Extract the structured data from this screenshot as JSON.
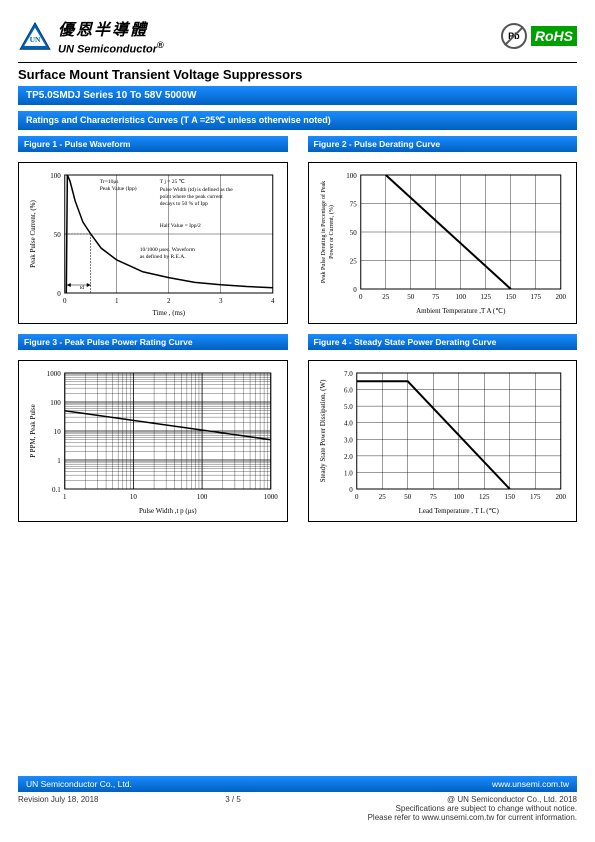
{
  "header": {
    "logo_cn": "優恩半導體",
    "logo_en": "UN Semiconductor",
    "rohs": "RoHS",
    "pb": "Pb"
  },
  "main_title": "Surface Mount Transient Voltage Suppressors",
  "series_bar": "TP5.0SMDJ Series 10 To 58V 5000W",
  "ratings_bar": "Ratings and Characteristics Curves (T A =25℃  unless otherwise noted)",
  "figures": {
    "fig1": {
      "title": "Figure 1 - Pulse Waveform",
      "ylabel": "Peak Pulse Current, (%)",
      "xlabel": "Time , (ms)",
      "xticks": [
        "0",
        "1",
        "2",
        "3",
        "4"
      ],
      "yticks": [
        "0",
        "50",
        "100"
      ],
      "note1": "Tr=10μs",
      "note2": "Peak Value (Ipp)",
      "note3": "T j = 25 ℃",
      "note4": "Pulse Width (td) is defined as the point where the peak current decays to 50 % of Ipp",
      "note5": "Half Value = Ipp/2",
      "note6": "10/1000 μsec. Waveform as defined by R.E.A.",
      "note7": "td",
      "curve": [
        [
          0.05,
          1.0
        ],
        [
          0.1,
          0.95
        ],
        [
          0.2,
          0.78
        ],
        [
          0.35,
          0.6
        ],
        [
          0.5,
          0.5
        ],
        [
          0.7,
          0.38
        ],
        [
          1.0,
          0.28
        ],
        [
          1.5,
          0.18
        ],
        [
          2.0,
          0.13
        ],
        [
          2.5,
          0.09
        ],
        [
          3.0,
          0.07
        ],
        [
          3.5,
          0.055
        ],
        [
          4.0,
          0.045
        ]
      ],
      "grid_color": "#000",
      "line_color": "#000",
      "line_width": 1.5
    },
    "fig2": {
      "title": "Figure 2 - Pulse Derating Curve",
      "ylabel": "Peak Pulse Derating in Percentage of Peak Power or Current, (%)",
      "xlabel": "Ambient Temperature ,T A   (℃)",
      "xticks": [
        "0",
        "25",
        "50",
        "75",
        "100",
        "125",
        "150",
        "175",
        "200"
      ],
      "yticks": [
        "0",
        "25",
        "50",
        "75",
        "100"
      ],
      "line": [
        [
          25,
          100
        ],
        [
          150,
          0
        ]
      ],
      "grid_color": "#000",
      "line_color": "#000",
      "line_width": 2
    },
    "fig3": {
      "title": "Figure 3 - Peak Pulse Power Rating Curve",
      "ylabel": "P PPM, Peak Pulse",
      "xlabel": "Pulse Width ,t p  (μs)",
      "xticks": [
        "1",
        "10",
        "100",
        "1000"
      ],
      "yticks": [
        "0.1",
        "1",
        "10",
        "100",
        "1000"
      ],
      "log_line": [
        [
          1,
          50
        ],
        [
          1000,
          5
        ]
      ],
      "grid_color": "#000",
      "line_color": "#000",
      "line_width": 1.5
    },
    "fig4": {
      "title": "Figure 4 - Steady State Power Derating Curve",
      "ylabel": "Steady State Power Dissipation, (W)",
      "xlabel": "Lead Temperature , T L   (℃)",
      "xticks": [
        "0",
        "25",
        "50",
        "75",
        "100",
        "125",
        "150",
        "175",
        "200"
      ],
      "yticks": [
        "0",
        "1.0",
        "2.0",
        "3.0",
        "4.0",
        "5.0",
        "6.0",
        "7.0"
      ],
      "line": [
        [
          0,
          6.5
        ],
        [
          50,
          6.5
        ],
        [
          150,
          0
        ]
      ],
      "grid_color": "#000",
      "line_color": "#000",
      "line_width": 2
    }
  },
  "footer": {
    "company": "UN Semiconductor Co., Ltd.",
    "url": "www.unsemi.com.tw",
    "revision": "Revision July 18, 2018",
    "page": "3 / 5",
    "copyright": "@ UN Semiconductor Co., Ltd.   2018",
    "note1": "Specifications are subject to change without notice.",
    "note2": "Please refer to www.unsemi.com.tw for current information."
  },
  "colors": {
    "blue_bar": "#0070d0",
    "green": "#00a000",
    "grid": "#000000"
  }
}
